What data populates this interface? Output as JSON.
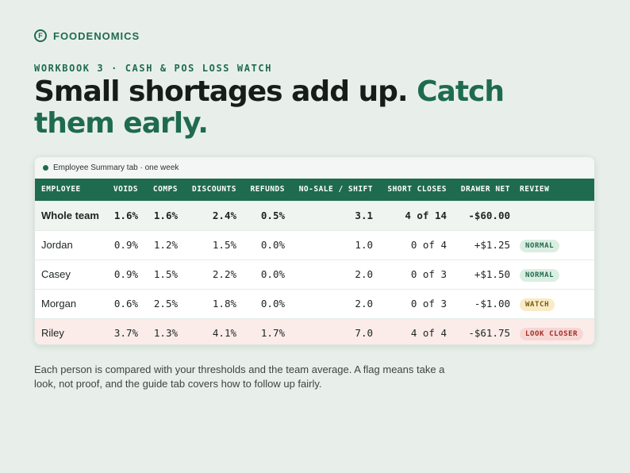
{
  "brand": {
    "logo_letter": "F",
    "name": "FOODENOMICS"
  },
  "eyebrow": "WORKBOOK 3 · CASH & POS LOSS WATCH",
  "headline": {
    "part1": "Small shortages add up. ",
    "accent": "Catch them early."
  },
  "card": {
    "caption": "Employee Summary tab · one week",
    "columns": [
      "EMPLOYEE",
      "VOIDS",
      "COMPS",
      "DISCOUNTS",
      "REFUNDS",
      "NO-SALE / SHIFT",
      "SHORT CLOSES",
      "DRAWER NET",
      "REVIEW"
    ],
    "team_row": {
      "name": "Whole team",
      "voids": "1.6%",
      "comps": "1.6%",
      "discounts": "2.4%",
      "refunds": "0.5%",
      "nosale": "3.1",
      "short": "4 of 14",
      "net": "-$60.00",
      "review": ""
    },
    "rows": [
      {
        "name": "Jordan",
        "voids": "0.9%",
        "comps": "1.2%",
        "discounts": "1.5%",
        "refunds": "0.0%",
        "nosale": "1.0",
        "short": "0 of 4",
        "net": "+$1.25",
        "review": "NORMAL"
      },
      {
        "name": "Casey",
        "voids": "0.9%",
        "comps": "1.5%",
        "discounts": "2.2%",
        "refunds": "0.0%",
        "nosale": "2.0",
        "short": "0 of 3",
        "net": "+$1.50",
        "review": "NORMAL"
      },
      {
        "name": "Morgan",
        "voids": "0.6%",
        "comps": "2.5%",
        "discounts": "1.8%",
        "refunds": "0.0%",
        "nosale": "2.0",
        "short": "0 of 3",
        "net": "-$1.00",
        "review": "WATCH"
      },
      {
        "name": "Riley",
        "voids": "3.7%",
        "comps": "1.3%",
        "discounts": "4.1%",
        "refunds": "1.7%",
        "nosale": "7.0",
        "short": "4 of 4",
        "net": "-$61.75",
        "review": "LOOK CLOSER"
      }
    ]
  },
  "footnote": "Each person is compared with your thresholds and the team average. A flag means take a look, not proof, and the guide tab covers how to follow up fairly.",
  "colors": {
    "accent": "#1f6b4f",
    "background": "#e8efea",
    "flag_row": "#fbecea"
  }
}
